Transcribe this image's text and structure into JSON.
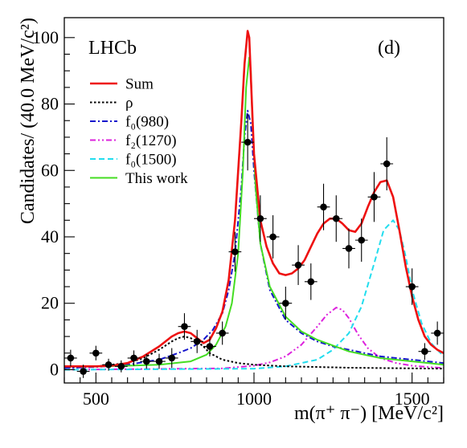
{
  "chart_data": {
    "type": "line",
    "experiment_label": "LHCb",
    "panel_label": "(d)",
    "xlabel": "m(π⁺ π⁻) [MeV/c²]",
    "ylabel": "Candidates/ (40.0 MeV/c²)",
    "xlim": [
      400,
      1600
    ],
    "ylim": [
      -4,
      106
    ],
    "x_ticks": [
      500,
      1000,
      1500
    ],
    "y_ticks": [
      0,
      20,
      40,
      60,
      80,
      100
    ],
    "grid": false,
    "legend_position": "top-left",
    "data_points": {
      "name": "Data",
      "x_bin_width": 40,
      "points": [
        {
          "x": 420,
          "y": 3.5,
          "err": 2.5
        },
        {
          "x": 460,
          "y": -0.5,
          "err": 2.0
        },
        {
          "x": 500,
          "y": 5.0,
          "err": 2.2
        },
        {
          "x": 540,
          "y": 1.5,
          "err": 1.8
        },
        {
          "x": 580,
          "y": 1.0,
          "err": 1.8
        },
        {
          "x": 620,
          "y": 3.5,
          "err": 2.3
        },
        {
          "x": 660,
          "y": 2.5,
          "err": 2.2
        },
        {
          "x": 700,
          "y": 2.5,
          "err": 2.3
        },
        {
          "x": 740,
          "y": 3.5,
          "err": 3.0
        },
        {
          "x": 780,
          "y": 13.0,
          "err": 4.0
        },
        {
          "x": 820,
          "y": 8.5,
          "err": 3.5
        },
        {
          "x": 860,
          "y": 7.0,
          "err": 3.0
        },
        {
          "x": 900,
          "y": 11.0,
          "err": 3.5
        },
        {
          "x": 940,
          "y": 35.5,
          "err": 6.0
        },
        {
          "x": 980,
          "y": 68.5,
          "err": 8.5
        },
        {
          "x": 1020,
          "y": 45.5,
          "err": 7.0
        },
        {
          "x": 1060,
          "y": 40.0,
          "err": 6.5
        },
        {
          "x": 1100,
          "y": 20.0,
          "err": 5.0
        },
        {
          "x": 1140,
          "y": 31.5,
          "err": 6.0
        },
        {
          "x": 1180,
          "y": 26.5,
          "err": 5.5
        },
        {
          "x": 1220,
          "y": 49.0,
          "err": 7.0
        },
        {
          "x": 1260,
          "y": 45.5,
          "err": 7.0
        },
        {
          "x": 1300,
          "y": 36.5,
          "err": 6.0
        },
        {
          "x": 1340,
          "y": 39.0,
          "err": 6.5
        },
        {
          "x": 1380,
          "y": 52.0,
          "err": 7.5
        },
        {
          "x": 1420,
          "y": 62.0,
          "err": 8.0
        },
        {
          "x": 1500,
          "y": 25.0,
          "err": 5.5
        },
        {
          "x": 1540,
          "y": 5.5,
          "err": 2.5
        },
        {
          "x": 1580,
          "y": 11.0,
          "err": 3.5
        }
      ]
    },
    "series": [
      {
        "name": "Sum",
        "color": "#ee1111",
        "style": "solid",
        "x": [
          400,
          450,
          500,
          550,
          600,
          650,
          700,
          740,
          760,
          780,
          800,
          820,
          840,
          860,
          880,
          900,
          920,
          940,
          960,
          970,
          980,
          985,
          990,
          1000,
          1020,
          1040,
          1060,
          1080,
          1100,
          1120,
          1140,
          1160,
          1180,
          1200,
          1220,
          1240,
          1260,
          1280,
          1300,
          1320,
          1340,
          1360,
          1380,
          1400,
          1420,
          1440,
          1460,
          1480,
          1500,
          1520,
          1540,
          1560,
          1580,
          1600
        ],
        "y": [
          1.0,
          1.0,
          1.0,
          1.2,
          2.0,
          4.0,
          7.0,
          10.0,
          11.0,
          11.5,
          11.0,
          9.5,
          8.0,
          9.0,
          12.5,
          17.5,
          27.0,
          45.0,
          75.0,
          92.0,
          102.0,
          100.0,
          88.0,
          65.0,
          45.0,
          37.0,
          32.0,
          29.0,
          28.5,
          29.0,
          30.5,
          33.0,
          37.0,
          41.0,
          44.0,
          45.5,
          45.5,
          44.0,
          42.0,
          41.5,
          44.0,
          49.0,
          53.5,
          56.5,
          57.0,
          52.0,
          42.0,
          31.0,
          22.0,
          15.0,
          10.0,
          7.5,
          6.0,
          5.0
        ]
      },
      {
        "name": "ρ",
        "color": "#000000",
        "style": "dotted",
        "x": [
          400,
          500,
          600,
          650,
          700,
          740,
          760,
          780,
          800,
          820,
          840,
          860,
          900,
          950,
          1000,
          1100,
          1200,
          1300,
          1400,
          1500,
          1600
        ],
        "y": [
          0.5,
          1.0,
          2.0,
          3.5,
          6.0,
          8.5,
          9.5,
          10.0,
          9.5,
          8.5,
          7.0,
          5.0,
          3.0,
          2.0,
          1.5,
          1.0,
          0.8,
          0.6,
          0.5,
          0.4,
          0.3
        ]
      },
      {
        "name": "f₀(980)",
        "color": "#1515cc",
        "style": "dashdot",
        "x": [
          400,
          500,
          600,
          700,
          760,
          800,
          840,
          870,
          900,
          920,
          940,
          960,
          970,
          980,
          990,
          1000,
          1020,
          1050,
          1100,
          1150,
          1200,
          1250,
          1300,
          1350,
          1400,
          1450,
          1500,
          1550,
          1600
        ],
        "y": [
          0.5,
          0.8,
          1.5,
          3.0,
          5.0,
          6.5,
          9.0,
          12.0,
          17.0,
          24.0,
          35.0,
          55.0,
          70.0,
          78.0,
          74.0,
          60.0,
          38.0,
          24.0,
          15.0,
          11.0,
          8.5,
          7.0,
          6.0,
          5.0,
          4.0,
          3.5,
          3.0,
          2.5,
          2.0
        ]
      },
      {
        "name": "f₂(1270)",
        "color": "#dd22dd",
        "style": "dashdotdot",
        "x": [
          400,
          900,
          1000,
          1050,
          1100,
          1150,
          1200,
          1230,
          1260,
          1280,
          1300,
          1330,
          1360,
          1400,
          1450,
          1500,
          1550,
          1600
        ],
        "y": [
          0.0,
          0.4,
          1.2,
          2.2,
          4.0,
          7.5,
          13.0,
          16.5,
          18.7,
          18.0,
          15.5,
          10.5,
          6.5,
          3.5,
          2.0,
          1.2,
          0.8,
          0.5
        ]
      },
      {
        "name": "f₀(1500)",
        "color": "#22ddee",
        "style": "dashed",
        "x": [
          400,
          1000,
          1100,
          1200,
          1250,
          1300,
          1340,
          1380,
          1410,
          1440,
          1460,
          1480,
          1500,
          1530,
          1560,
          1600
        ],
        "y": [
          0.0,
          0.3,
          1.0,
          3.0,
          6.0,
          11.0,
          19.0,
          32.0,
          42.0,
          45.0,
          42.0,
          34.0,
          24.0,
          14.0,
          8.0,
          4.0
        ]
      },
      {
        "name": "This work",
        "color": "#44dd22",
        "style": "solid",
        "x": [
          400,
          500,
          600,
          700,
          800,
          850,
          880,
          910,
          930,
          950,
          965,
          975,
          985,
          990,
          995,
          1005,
          1020,
          1050,
          1100,
          1150,
          1200,
          1300,
          1400,
          1500,
          1600
        ],
        "y": [
          1.0,
          1.0,
          1.2,
          1.5,
          2.5,
          4.5,
          7.5,
          13.0,
          20.0,
          35.0,
          60.0,
          85.0,
          94.0,
          90.0,
          75.0,
          55.0,
          38.0,
          25.0,
          16.0,
          11.5,
          9.0,
          5.5,
          3.5,
          2.5,
          1.5
        ]
      }
    ]
  }
}
